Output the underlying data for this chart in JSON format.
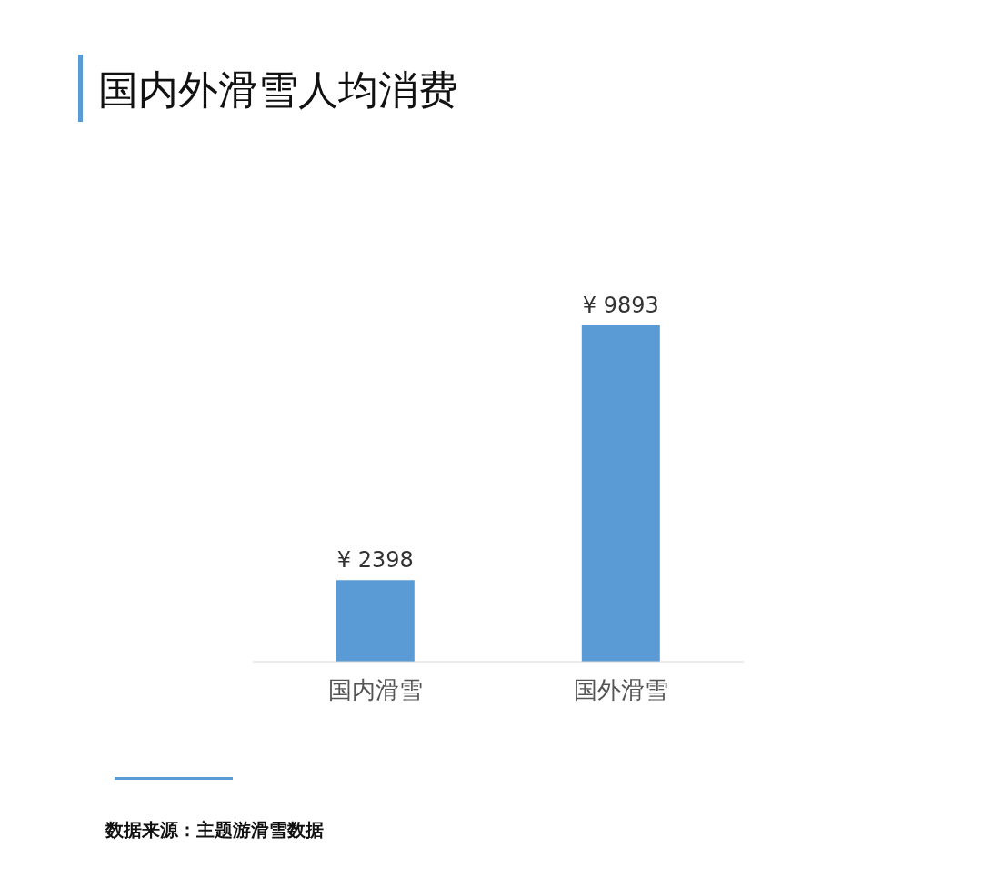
{
  "chart_data": {
    "type": "bar",
    "title": "国内外滑雪人均消费",
    "categories": [
      "国内滑雪",
      "国外滑雪"
    ],
    "values": [
      2398,
      9893
    ],
    "color": "#5b9bd5",
    "value_labels": [
      "¥ 2398",
      "¥ 9893"
    ],
    "annotations": [
      "数据来源：主题游滑雪数据"
    ]
  }
}
